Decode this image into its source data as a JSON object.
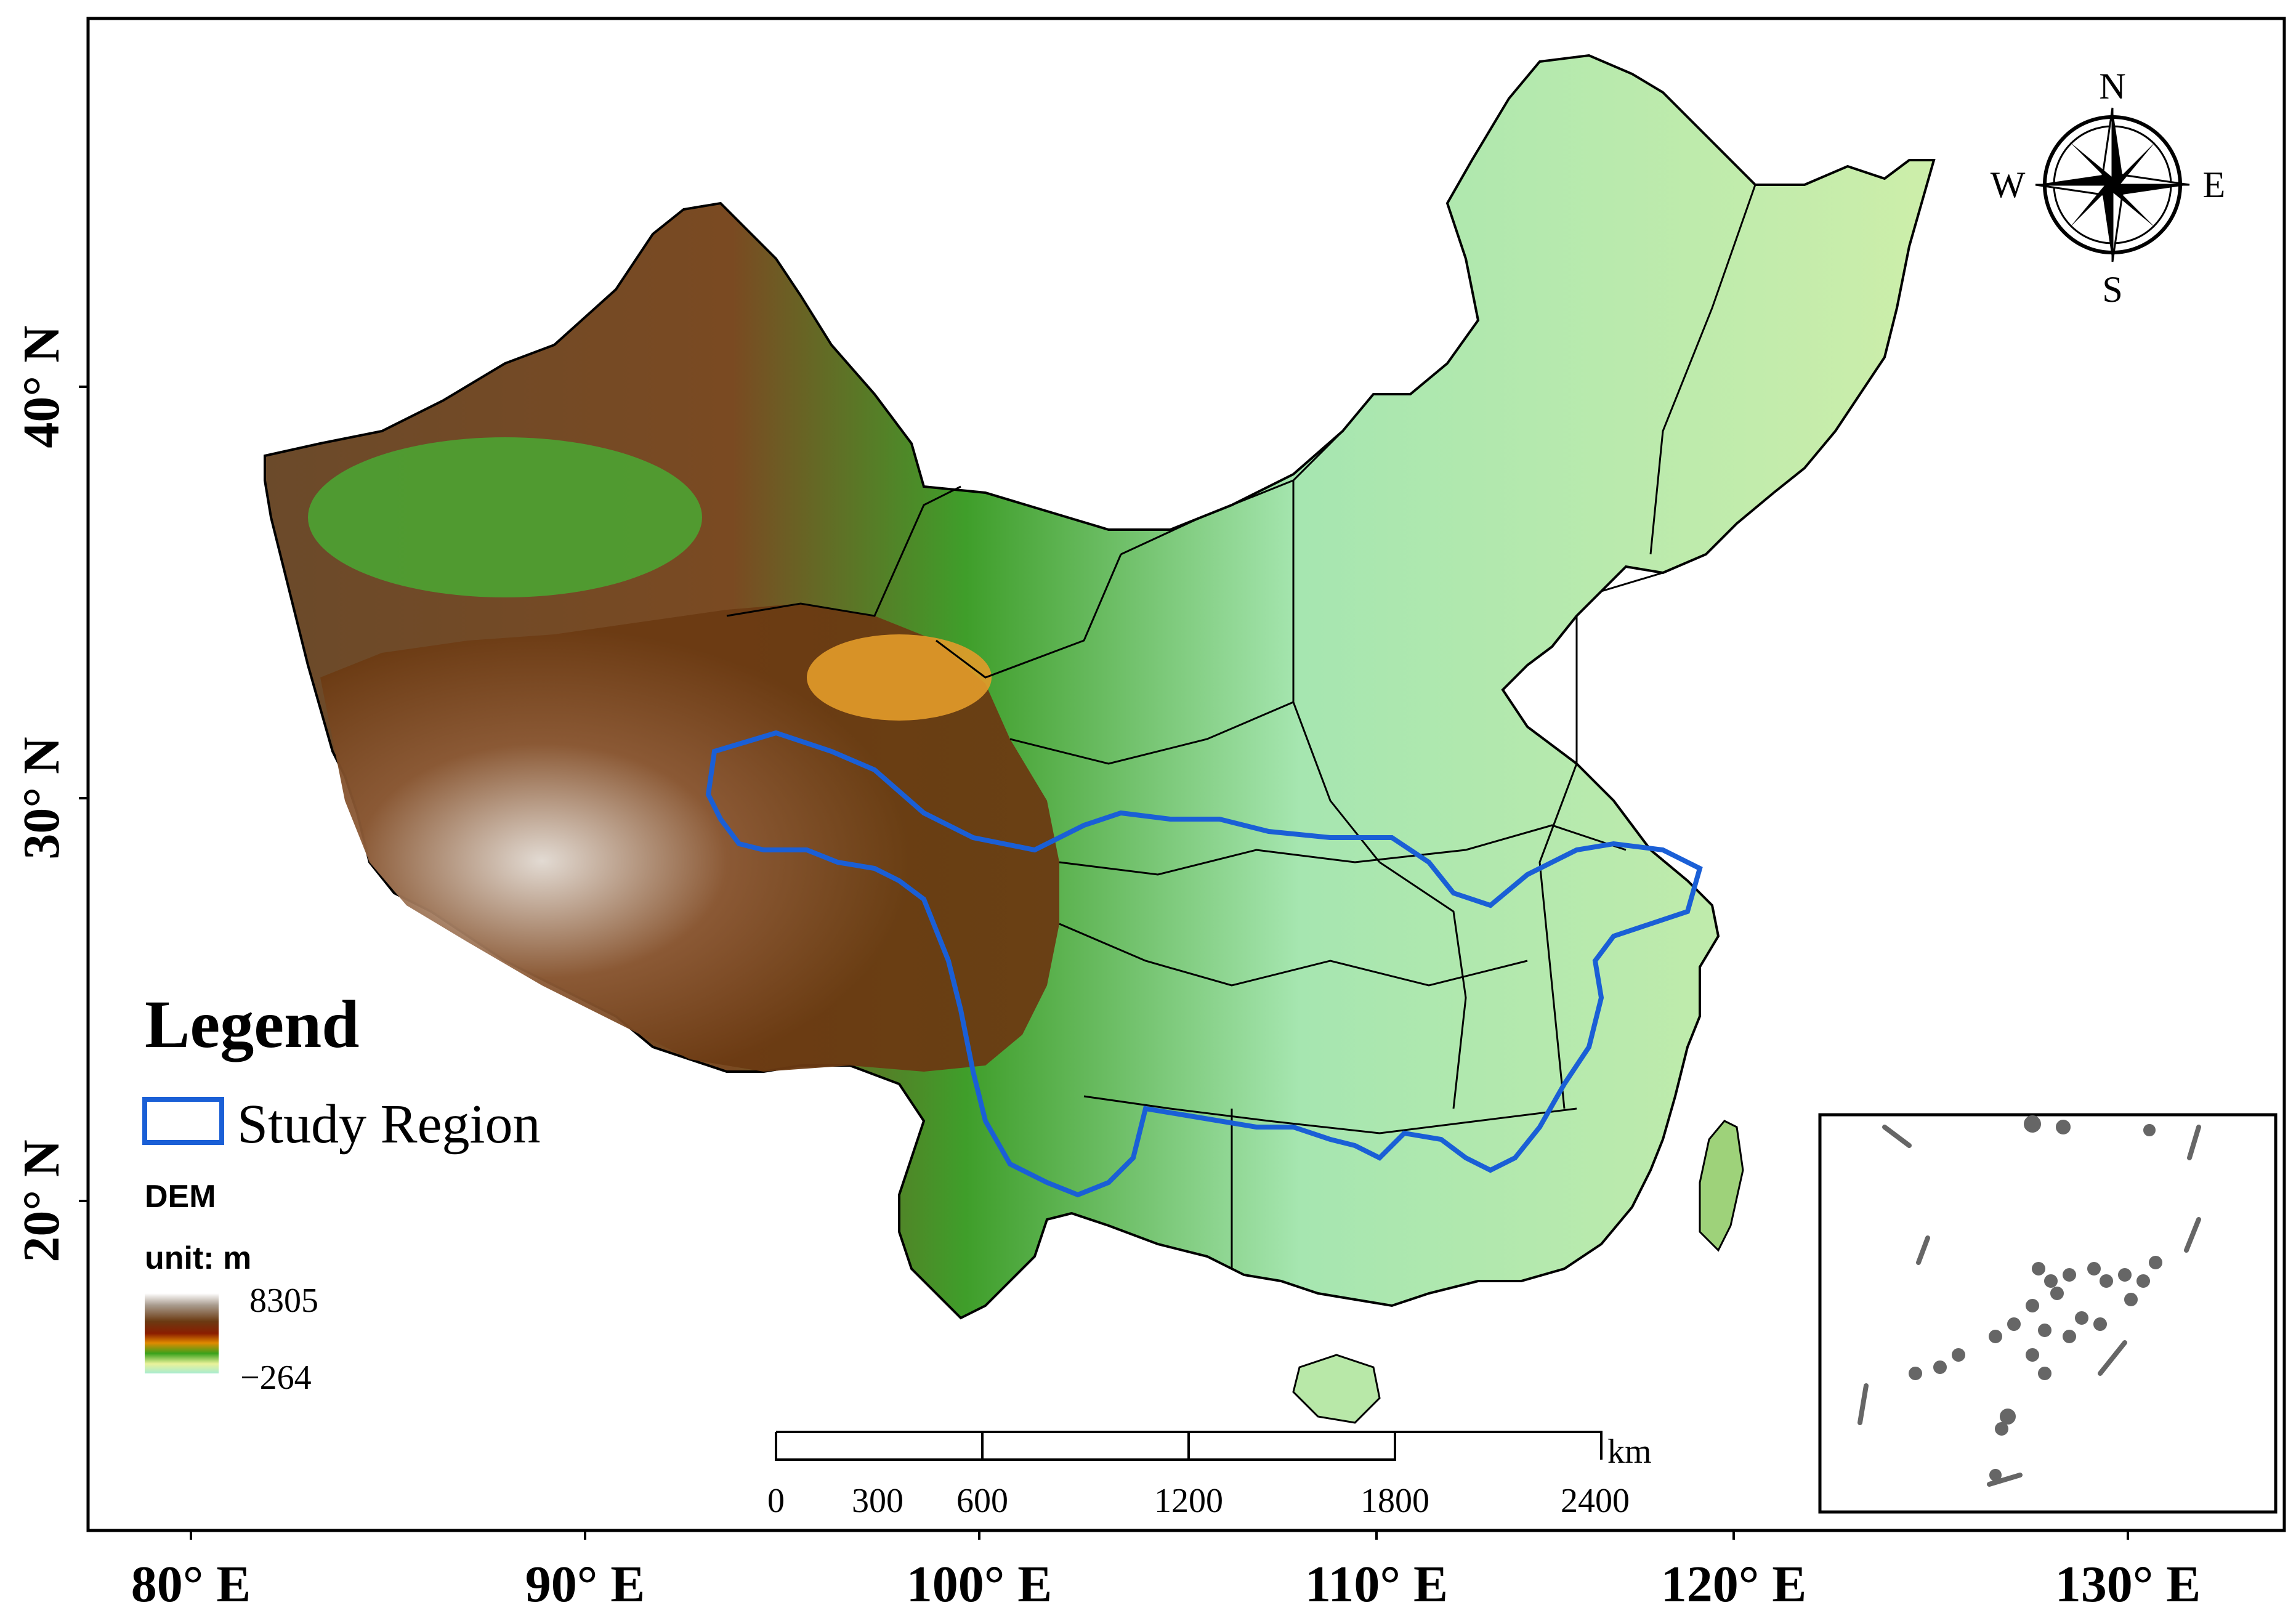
{
  "axes": {
    "x_ticks": [
      "80° E",
      "90° E",
      "100° E",
      "110° E",
      "120° E",
      "130° E"
    ],
    "y_ticks": [
      "40° N",
      "30° N",
      "20° N"
    ]
  },
  "legend": {
    "title": "Legend",
    "study_region_label": "Study Region",
    "dem_label": "DEM",
    "unit_label": "unit: m",
    "dem_max": "8305",
    "dem_min": "−264",
    "colors": {
      "study_region": "#1a5fd6",
      "dem_ramp": [
        "#ffffff",
        "#a89a8c",
        "#6b3a12",
        "#8a1d00",
        "#e08a00",
        "#3aa11b",
        "#eaf29a",
        "#a8ecd0"
      ]
    }
  },
  "compass": {
    "north": "N",
    "south": "S",
    "east": "E",
    "west": "W"
  },
  "scale_bar": {
    "unit": "km",
    "labels": [
      "0",
      "300",
      "600",
      "1200",
      "1800",
      "2400"
    ]
  },
  "inset": {
    "description_visible": ""
  }
}
